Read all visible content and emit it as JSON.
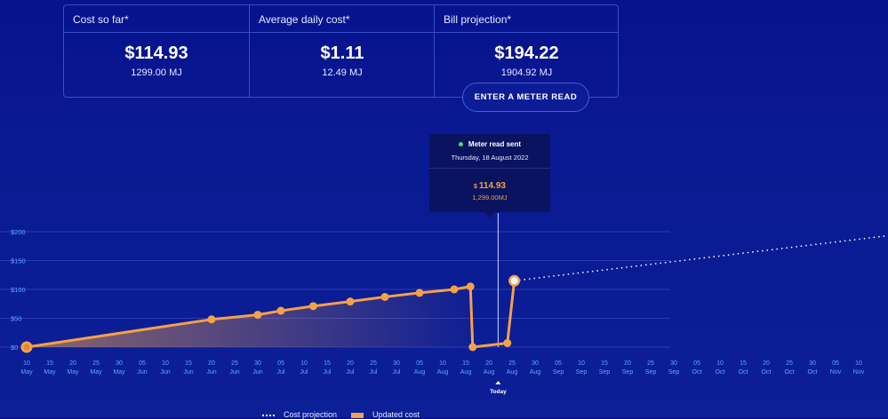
{
  "summary": {
    "cards": [
      {
        "label": "Cost so far*",
        "value": "$114.93",
        "sub": "1299.00 MJ"
      },
      {
        "label": "Average daily cost*",
        "value": "$1.11",
        "sub": "12.49 MJ"
      },
      {
        "label": "Bill projection*",
        "value": "$194.22",
        "sub": "1904.92 MJ"
      }
    ]
  },
  "meter_button": {
    "label": "ENTER A METER READ"
  },
  "tooltip": {
    "title": "Meter read sent",
    "date": "Thursday, 18 August 2022",
    "currency": "$",
    "cost": "114.93",
    "energy": "1,299.00MJ"
  },
  "colors": {
    "accent": "#f5a04a",
    "status": "#3de06e",
    "background": "#0a1a92"
  },
  "legend": {
    "projection": "Cost projection",
    "updated": "Updated cost"
  },
  "today_label": "Today",
  "chart_data": {
    "type": "line",
    "ylim": [
      0,
      200
    ],
    "y_ticks": [
      "$0",
      "$50",
      "$100",
      "$150",
      "$200"
    ],
    "x_ticks": [
      [
        "10",
        "May"
      ],
      [
        "15",
        "May"
      ],
      [
        "20",
        "May"
      ],
      [
        "25",
        "May"
      ],
      [
        "30",
        "May"
      ],
      [
        "05",
        "Jun"
      ],
      [
        "10",
        "Jun"
      ],
      [
        "15",
        "Jun"
      ],
      [
        "20",
        "Jun"
      ],
      [
        "25",
        "Jun"
      ],
      [
        "30",
        "Jun"
      ],
      [
        "05",
        "Jul"
      ],
      [
        "10",
        "Jul"
      ],
      [
        "15",
        "Jul"
      ],
      [
        "20",
        "Jul"
      ],
      [
        "25",
        "Jul"
      ],
      [
        "30",
        "Jul"
      ],
      [
        "05",
        "Aug"
      ],
      [
        "10",
        "Aug"
      ],
      [
        "15",
        "Aug"
      ],
      [
        "20",
        "Aug"
      ],
      [
        "25",
        "Aug"
      ],
      [
        "30",
        "Aug"
      ],
      [
        "05",
        "Sep"
      ],
      [
        "10",
        "Sep"
      ],
      [
        "15",
        "Sep"
      ],
      [
        "20",
        "Sep"
      ],
      [
        "25",
        "Sep"
      ],
      [
        "30",
        "Sep"
      ],
      [
        "05",
        "Oct"
      ],
      [
        "10",
        "Oct"
      ],
      [
        "15",
        "Oct"
      ],
      [
        "20",
        "Oct"
      ],
      [
        "25",
        "Oct"
      ],
      [
        "30",
        "Oct"
      ],
      [
        "05",
        "Nov"
      ],
      [
        "10",
        "Nov"
      ]
    ],
    "series": [
      {
        "name": "Updated cost",
        "points": [
          [
            0,
            0
          ],
          [
            8,
            48
          ],
          [
            10,
            56
          ],
          [
            11,
            63
          ],
          [
            12.4,
            71
          ],
          [
            14,
            79
          ],
          [
            15.5,
            87
          ],
          [
            17,
            94
          ],
          [
            18.5,
            100
          ],
          [
            19.2,
            105
          ],
          [
            19.3,
            0
          ],
          [
            20.8,
            7
          ],
          [
            21.1,
            114.93
          ]
        ]
      },
      {
        "name": "Cost projection",
        "points": [
          [
            21.1,
            114.93
          ],
          [
            37.5,
            194.22
          ]
        ]
      }
    ],
    "today_index": 20.4
  }
}
